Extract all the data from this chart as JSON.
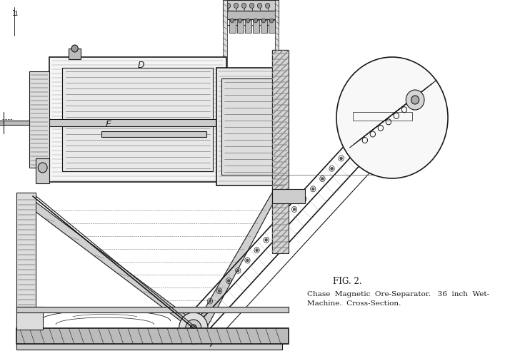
{
  "title": "FIG. 2.",
  "caption_line1": "Chase  Magnetic  Ore-Separator.   36  inch  Wet-",
  "caption_line2": "Machine.  Cross-Section.",
  "bg_color": "#ffffff",
  "line_color": "#1a1a1a",
  "label_D": "D",
  "label_E": "E",
  "label_1_top": "1",
  "fig_width": 7.21,
  "fig_height": 4.99
}
